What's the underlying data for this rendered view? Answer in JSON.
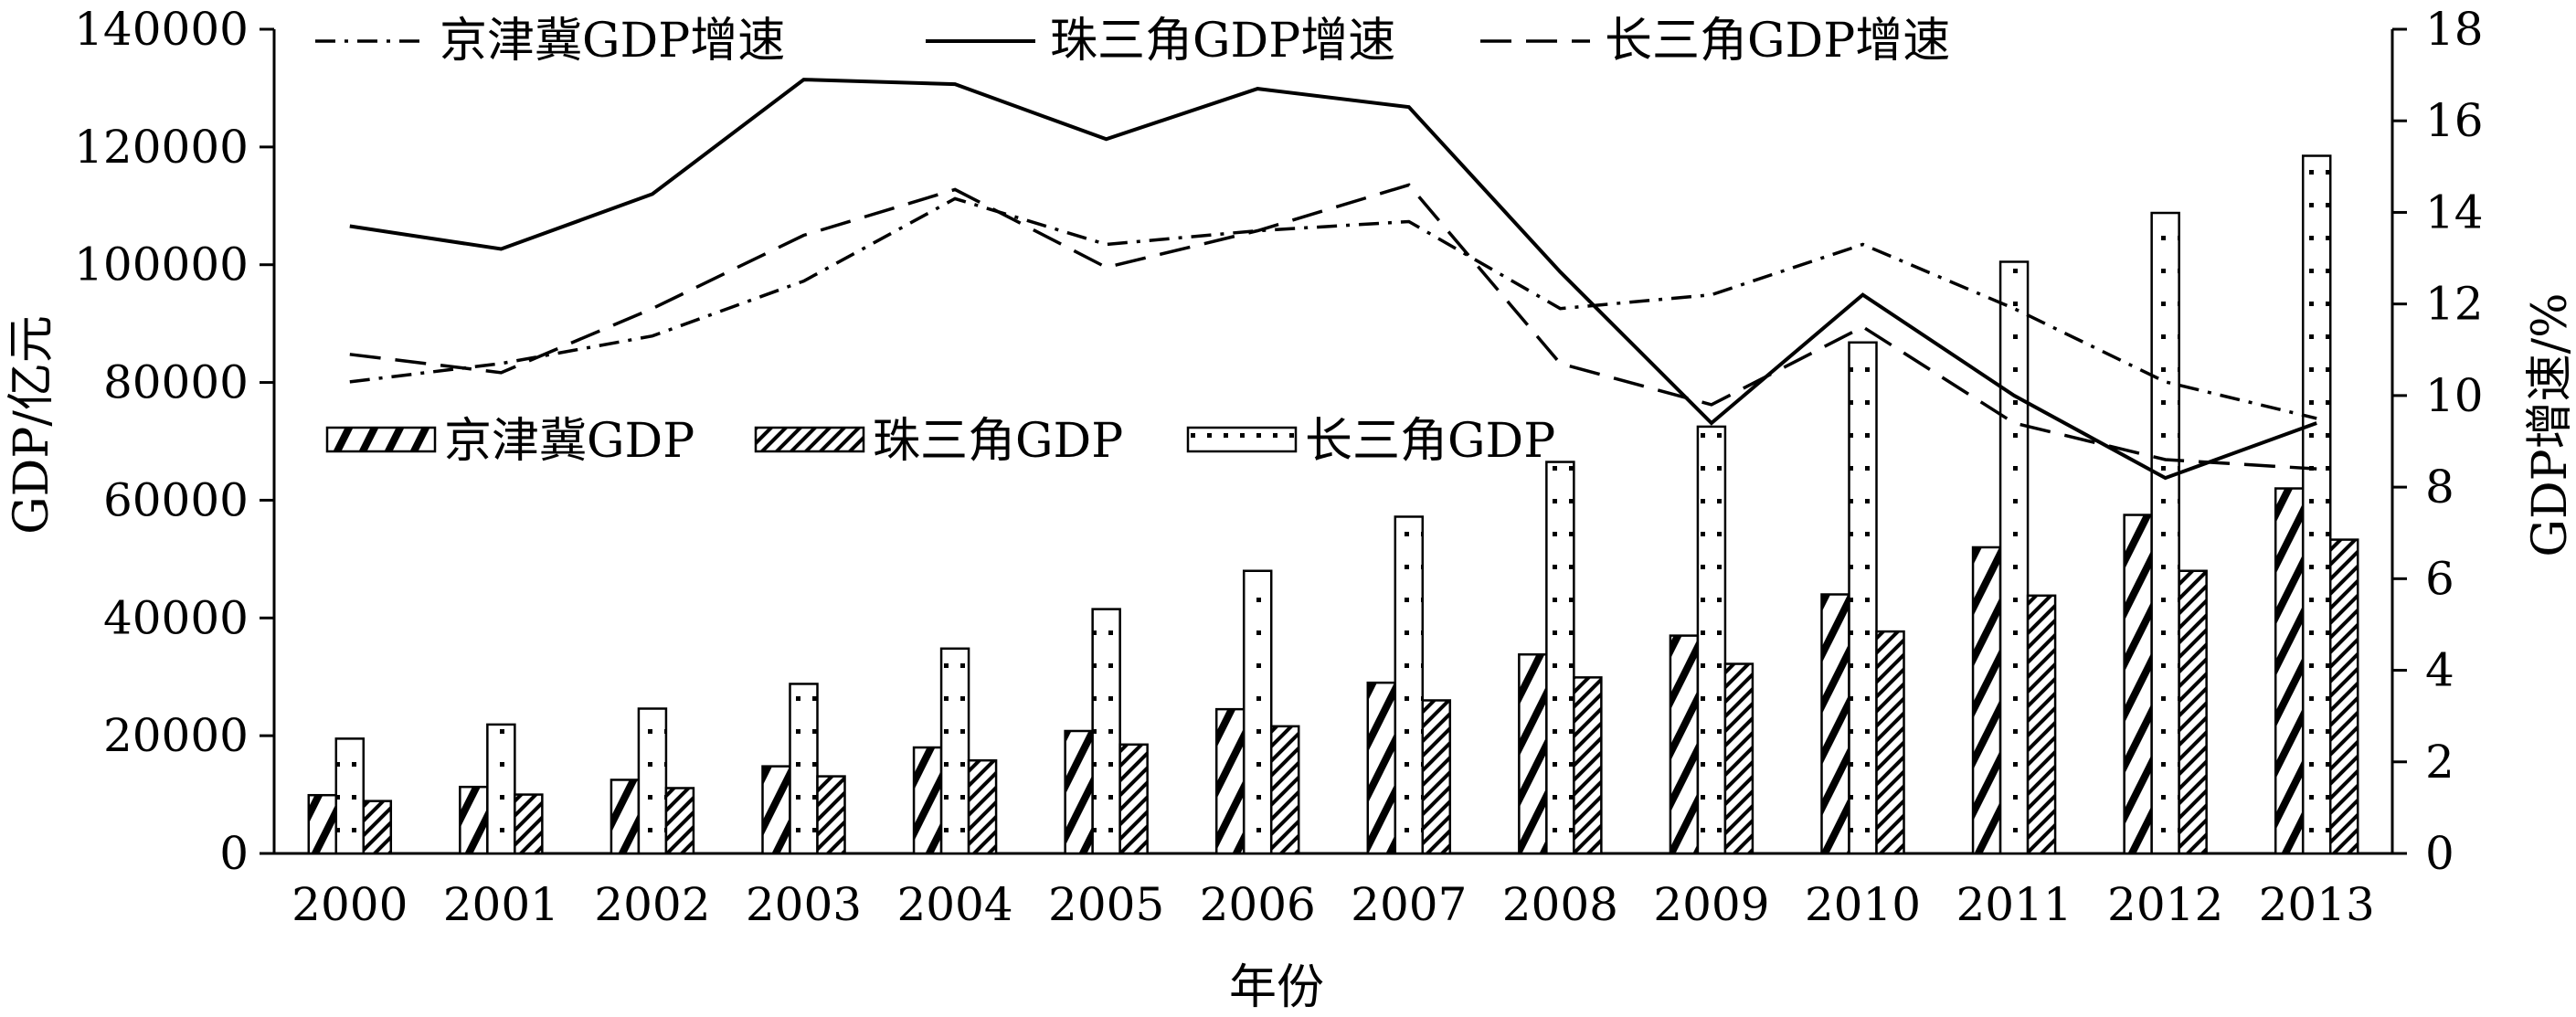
{
  "chart_data": {
    "type": "bar",
    "categories": [
      "2000",
      "2001",
      "2002",
      "2003",
      "2004",
      "2005",
      "2006",
      "2007",
      "2008",
      "2009",
      "2010",
      "2011",
      "2012",
      "2013"
    ],
    "xlabel": "年份",
    "ylabel": "GDP/亿元",
    "y2label": "GDP增速/%",
    "ylim": [
      0,
      140000
    ],
    "y2lim": [
      0,
      18
    ],
    "yticks": [
      "0",
      "20000",
      "40000",
      "60000",
      "80000",
      "100000",
      "120000",
      "140000"
    ],
    "y2ticks": [
      "0",
      "2",
      "4",
      "6",
      "8",
      "10",
      "12",
      "14",
      "16",
      "18"
    ],
    "bar_series": [
      {
        "name": "京津冀GDP",
        "values": [
          9900,
          11300,
          12500,
          14800,
          18000,
          20800,
          24500,
          29000,
          33800,
          37000,
          44000,
          52000,
          57500,
          62000
        ]
      },
      {
        "name": "长三角GDP",
        "values": [
          19500,
          21900,
          24600,
          28800,
          34800,
          41500,
          48000,
          57200,
          66500,
          72500,
          86800,
          100500,
          108800,
          118500
        ]
      },
      {
        "name": "珠三角GDP",
        "values": [
          8900,
          10000,
          11100,
          13100,
          15800,
          18500,
          21600,
          26000,
          29900,
          32200,
          37700,
          43800,
          48000,
          53300
        ]
      }
    ],
    "line_series": [
      {
        "name": "京津冀GDP增速",
        "values": [
          10.3,
          10.7,
          11.3,
          12.5,
          14.3,
          13.3,
          13.6,
          13.8,
          11.9,
          12.2,
          13.3,
          11.9,
          10.3,
          9.5
        ]
      },
      {
        "name": "珠三角GDP增速",
        "values": [
          13.7,
          13.2,
          14.4,
          16.9,
          16.8,
          15.6,
          16.7,
          16.3,
          12.7,
          9.4,
          12.2,
          10.0,
          8.2,
          9.4
        ]
      },
      {
        "name": "长三角GDP增速",
        "values": [
          10.9,
          10.5,
          11.9,
          13.5,
          14.5,
          12.8,
          13.6,
          14.6,
          10.7,
          9.8,
          11.5,
          9.4,
          8.6,
          8.4
        ]
      }
    ],
    "legend_lines_position": "top",
    "legend_bars_position": "upper-left",
    "grid": false
  }
}
